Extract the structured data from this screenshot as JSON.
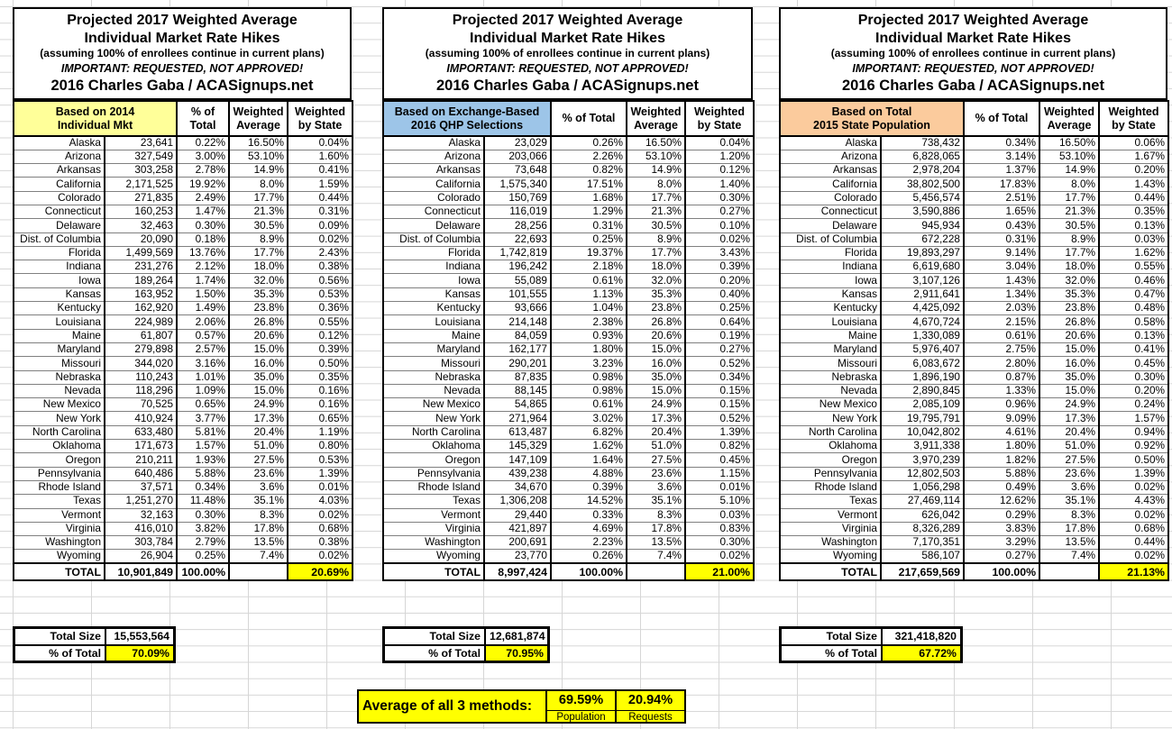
{
  "title": {
    "line1": "Projected 2017 Weighted Average",
    "line2": "Individual Market Rate Hikes",
    "line3": "(assuming 100% of enrollees continue in current plans)",
    "line4": "IMPORTANT: REQUESTED, NOT APPROVED!",
    "line5": "2016 Charles Gaba / ACASignups.net"
  },
  "columns": {
    "pct_of_total": "% of Total",
    "weighted_average": "Weighted Average",
    "weighted_by_state": "Weighted by State"
  },
  "colors": {
    "table1_header": "#ffff99",
    "table2_header": "#9dc5e8",
    "table3_header": "#fbcb9d",
    "highlight": "#ffff00"
  },
  "tables": [
    {
      "category_line1": "Based on 2014",
      "category_line2": "Individual Mkt",
      "header_color": "#ffff99",
      "rows": [
        [
          "Alaska",
          "23,641",
          "0.22%",
          "16.50%",
          "0.04%"
        ],
        [
          "Arizona",
          "327,549",
          "3.00%",
          "53.10%",
          "1.60%"
        ],
        [
          "Arkansas",
          "303,258",
          "2.78%",
          "14.9%",
          "0.41%"
        ],
        [
          "California",
          "2,171,525",
          "19.92%",
          "8.0%",
          "1.59%"
        ],
        [
          "Colorado",
          "271,835",
          "2.49%",
          "17.7%",
          "0.44%"
        ],
        [
          "Connecticut",
          "160,253",
          "1.47%",
          "21.3%",
          "0.31%"
        ],
        [
          "Delaware",
          "32,463",
          "0.30%",
          "30.5%",
          "0.09%"
        ],
        [
          "Dist. of Columbia",
          "20,090",
          "0.18%",
          "8.9%",
          "0.02%"
        ],
        [
          "Florida",
          "1,499,569",
          "13.76%",
          "17.7%",
          "2.43%"
        ],
        [
          "Indiana",
          "231,276",
          "2.12%",
          "18.0%",
          "0.38%"
        ],
        [
          "Iowa",
          "189,264",
          "1.74%",
          "32.0%",
          "0.56%"
        ],
        [
          "Kansas",
          "163,952",
          "1.50%",
          "35.3%",
          "0.53%"
        ],
        [
          "Kentucky",
          "162,920",
          "1.49%",
          "23.8%",
          "0.36%"
        ],
        [
          "Louisiana",
          "224,989",
          "2.06%",
          "26.8%",
          "0.55%"
        ],
        [
          "Maine",
          "61,807",
          "0.57%",
          "20.6%",
          "0.12%"
        ],
        [
          "Maryland",
          "279,898",
          "2.57%",
          "15.0%",
          "0.39%"
        ],
        [
          "Missouri",
          "344,020",
          "3.16%",
          "16.0%",
          "0.50%"
        ],
        [
          "Nebraska",
          "110,243",
          "1.01%",
          "35.0%",
          "0.35%"
        ],
        [
          "Nevada",
          "118,296",
          "1.09%",
          "15.0%",
          "0.16%"
        ],
        [
          "New Mexico",
          "70,525",
          "0.65%",
          "24.9%",
          "0.16%"
        ],
        [
          "New York",
          "410,924",
          "3.77%",
          "17.3%",
          "0.65%"
        ],
        [
          "North Carolina",
          "633,480",
          "5.81%",
          "20.4%",
          "1.19%"
        ],
        [
          "Oklahoma",
          "171,673",
          "1.57%",
          "51.0%",
          "0.80%"
        ],
        [
          "Oregon",
          "210,211",
          "1.93%",
          "27.5%",
          "0.53%"
        ],
        [
          "Pennsylvania",
          "640,486",
          "5.88%",
          "23.6%",
          "1.39%"
        ],
        [
          "Rhode Island",
          "37,571",
          "0.34%",
          "3.6%",
          "0.01%"
        ],
        [
          "Texas",
          "1,251,270",
          "11.48%",
          "35.1%",
          "4.03%"
        ],
        [
          "Vermont",
          "32,163",
          "0.30%",
          "8.3%",
          "0.02%"
        ],
        [
          "Virginia",
          "416,010",
          "3.82%",
          "17.8%",
          "0.68%"
        ],
        [
          "Washington",
          "303,784",
          "2.79%",
          "13.5%",
          "0.38%"
        ],
        [
          "Wyoming",
          "26,904",
          "0.25%",
          "7.4%",
          "0.02%"
        ]
      ],
      "total_row": [
        "TOTAL",
        "10,901,849",
        "100.00%",
        "",
        "20.69%"
      ],
      "summary": {
        "size_label": "Total Size",
        "size_value": "15,553,564",
        "pct_label": "% of Total",
        "pct_value": "70.09%"
      }
    },
    {
      "category_line1": "Based on Exchange-Based",
      "category_line2": "2016 QHP Selections",
      "header_color": "#9dc5e8",
      "rows": [
        [
          "Alaska",
          "23,029",
          "0.26%",
          "16.50%",
          "0.04%"
        ],
        [
          "Arizona",
          "203,066",
          "2.26%",
          "53.10%",
          "1.20%"
        ],
        [
          "Arkansas",
          "73,648",
          "0.82%",
          "14.9%",
          "0.12%"
        ],
        [
          "California",
          "1,575,340",
          "17.51%",
          "8.0%",
          "1.40%"
        ],
        [
          "Colorado",
          "150,769",
          "1.68%",
          "17.7%",
          "0.30%"
        ],
        [
          "Connecticut",
          "116,019",
          "1.29%",
          "21.3%",
          "0.27%"
        ],
        [
          "Delaware",
          "28,256",
          "0.31%",
          "30.5%",
          "0.10%"
        ],
        [
          "Dist. of Columbia",
          "22,693",
          "0.25%",
          "8.9%",
          "0.02%"
        ],
        [
          "Florida",
          "1,742,819",
          "19.37%",
          "17.7%",
          "3.43%"
        ],
        [
          "Indiana",
          "196,242",
          "2.18%",
          "18.0%",
          "0.39%"
        ],
        [
          "Iowa",
          "55,089",
          "0.61%",
          "32.0%",
          "0.20%"
        ],
        [
          "Kansas",
          "101,555",
          "1.13%",
          "35.3%",
          "0.40%"
        ],
        [
          "Kentucky",
          "93,666",
          "1.04%",
          "23.8%",
          "0.25%"
        ],
        [
          "Louisiana",
          "214,148",
          "2.38%",
          "26.8%",
          "0.64%"
        ],
        [
          "Maine",
          "84,059",
          "0.93%",
          "20.6%",
          "0.19%"
        ],
        [
          "Maryland",
          "162,177",
          "1.80%",
          "15.0%",
          "0.27%"
        ],
        [
          "Missouri",
          "290,201",
          "3.23%",
          "16.0%",
          "0.52%"
        ],
        [
          "Nebraska",
          "87,835",
          "0.98%",
          "35.0%",
          "0.34%"
        ],
        [
          "Nevada",
          "88,145",
          "0.98%",
          "15.0%",
          "0.15%"
        ],
        [
          "New Mexico",
          "54,865",
          "0.61%",
          "24.9%",
          "0.15%"
        ],
        [
          "New York",
          "271,964",
          "3.02%",
          "17.3%",
          "0.52%"
        ],
        [
          "North Carolina",
          "613,487",
          "6.82%",
          "20.4%",
          "1.39%"
        ],
        [
          "Oklahoma",
          "145,329",
          "1.62%",
          "51.0%",
          "0.82%"
        ],
        [
          "Oregon",
          "147,109",
          "1.64%",
          "27.5%",
          "0.45%"
        ],
        [
          "Pennsylvania",
          "439,238",
          "4.88%",
          "23.6%",
          "1.15%"
        ],
        [
          "Rhode Island",
          "34,670",
          "0.39%",
          "3.6%",
          "0.01%"
        ],
        [
          "Texas",
          "1,306,208",
          "14.52%",
          "35.1%",
          "5.10%"
        ],
        [
          "Vermont",
          "29,440",
          "0.33%",
          "8.3%",
          "0.03%"
        ],
        [
          "Virginia",
          "421,897",
          "4.69%",
          "17.8%",
          "0.83%"
        ],
        [
          "Washington",
          "200,691",
          "2.23%",
          "13.5%",
          "0.30%"
        ],
        [
          "Wyoming",
          "23,770",
          "0.26%",
          "7.4%",
          "0.02%"
        ]
      ],
      "total_row": [
        "TOTAL",
        "8,997,424",
        "100.00%",
        "",
        "21.00%"
      ],
      "summary": {
        "size_label": "Total Size",
        "size_value": "12,681,874",
        "pct_label": "% of Total",
        "pct_value": "70.95%"
      }
    },
    {
      "category_line1": "Based on Total",
      "category_line2": "2015 State Population",
      "header_color": "#fbcb9d",
      "rows": [
        [
          "Alaska",
          "738,432",
          "0.34%",
          "16.50%",
          "0.06%"
        ],
        [
          "Arizona",
          "6,828,065",
          "3.14%",
          "53.10%",
          "1.67%"
        ],
        [
          "Arkansas",
          "2,978,204",
          "1.37%",
          "14.9%",
          "0.20%"
        ],
        [
          "California",
          "38,802,500",
          "17.83%",
          "8.0%",
          "1.43%"
        ],
        [
          "Colorado",
          "5,456,574",
          "2.51%",
          "17.7%",
          "0.44%"
        ],
        [
          "Connecticut",
          "3,590,886",
          "1.65%",
          "21.3%",
          "0.35%"
        ],
        [
          "Delaware",
          "945,934",
          "0.43%",
          "30.5%",
          "0.13%"
        ],
        [
          "Dist. of Columbia",
          "672,228",
          "0.31%",
          "8.9%",
          "0.03%"
        ],
        [
          "Florida",
          "19,893,297",
          "9.14%",
          "17.7%",
          "1.62%"
        ],
        [
          "Indiana",
          "6,619,680",
          "3.04%",
          "18.0%",
          "0.55%"
        ],
        [
          "Iowa",
          "3,107,126",
          "1.43%",
          "32.0%",
          "0.46%"
        ],
        [
          "Kansas",
          "2,911,641",
          "1.34%",
          "35.3%",
          "0.47%"
        ],
        [
          "Kentucky",
          "4,425,092",
          "2.03%",
          "23.8%",
          "0.48%"
        ],
        [
          "Louisiana",
          "4,670,724",
          "2.15%",
          "26.8%",
          "0.58%"
        ],
        [
          "Maine",
          "1,330,089",
          "0.61%",
          "20.6%",
          "0.13%"
        ],
        [
          "Maryland",
          "5,976,407",
          "2.75%",
          "15.0%",
          "0.41%"
        ],
        [
          "Missouri",
          "6,083,672",
          "2.80%",
          "16.0%",
          "0.45%"
        ],
        [
          "Nebraska",
          "1,896,190",
          "0.87%",
          "35.0%",
          "0.30%"
        ],
        [
          "Nevada",
          "2,890,845",
          "1.33%",
          "15.0%",
          "0.20%"
        ],
        [
          "New Mexico",
          "2,085,109",
          "0.96%",
          "24.9%",
          "0.24%"
        ],
        [
          "New York",
          "19,795,791",
          "9.09%",
          "17.3%",
          "1.57%"
        ],
        [
          "North Carolina",
          "10,042,802",
          "4.61%",
          "20.4%",
          "0.94%"
        ],
        [
          "Oklahoma",
          "3,911,338",
          "1.80%",
          "51.0%",
          "0.92%"
        ],
        [
          "Oregon",
          "3,970,239",
          "1.82%",
          "27.5%",
          "0.50%"
        ],
        [
          "Pennsylvania",
          "12,802,503",
          "5.88%",
          "23.6%",
          "1.39%"
        ],
        [
          "Rhode Island",
          "1,056,298",
          "0.49%",
          "3.6%",
          "0.02%"
        ],
        [
          "Texas",
          "27,469,114",
          "12.62%",
          "35.1%",
          "4.43%"
        ],
        [
          "Vermont",
          "626,042",
          "0.29%",
          "8.3%",
          "0.02%"
        ],
        [
          "Virginia",
          "8,326,289",
          "3.83%",
          "17.8%",
          "0.68%"
        ],
        [
          "Washington",
          "7,170,351",
          "3.29%",
          "13.5%",
          "0.44%"
        ],
        [
          "Wyoming",
          "586,107",
          "0.27%",
          "7.4%",
          "0.02%"
        ]
      ],
      "total_row": [
        "TOTAL",
        "217,659,569",
        "100.00%",
        "",
        "21.13%"
      ],
      "summary": {
        "size_label": "Total Size",
        "size_value": "321,418,820",
        "pct_label": "% of Total",
        "pct_value": "67.72%"
      }
    }
  ],
  "average_box": {
    "label": "Average of all 3 methods:",
    "values": [
      {
        "pct": "69.59%",
        "caption": "Population"
      },
      {
        "pct": "20.94%",
        "caption": "Requests"
      }
    ]
  }
}
